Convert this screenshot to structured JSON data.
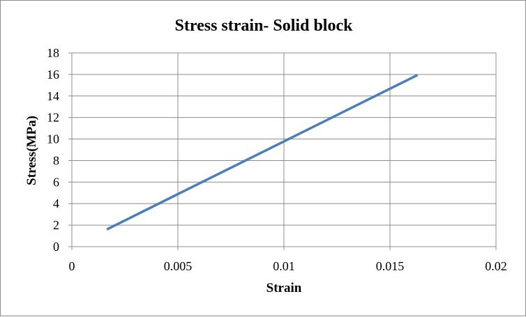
{
  "chart_data": {
    "type": "line",
    "title": "Stress strain- Solid block",
    "xlabel": "Strain",
    "ylabel": "Stress(MPa)",
    "xlim": [
      0,
      0.02
    ],
    "ylim": [
      0,
      18
    ],
    "x_ticks": [
      "0",
      "0.005",
      "0.01",
      "0.015",
      "0.02"
    ],
    "y_ticks": [
      "0",
      "2",
      "4",
      "6",
      "8",
      "10",
      "12",
      "14",
      "16",
      "18"
    ],
    "grid": true,
    "legend": "none",
    "series": [
      {
        "color": "#4a7ebb",
        "points": [
          [
            0.00165,
            1.6
          ],
          [
            0.0163,
            15.95
          ]
        ]
      }
    ]
  }
}
